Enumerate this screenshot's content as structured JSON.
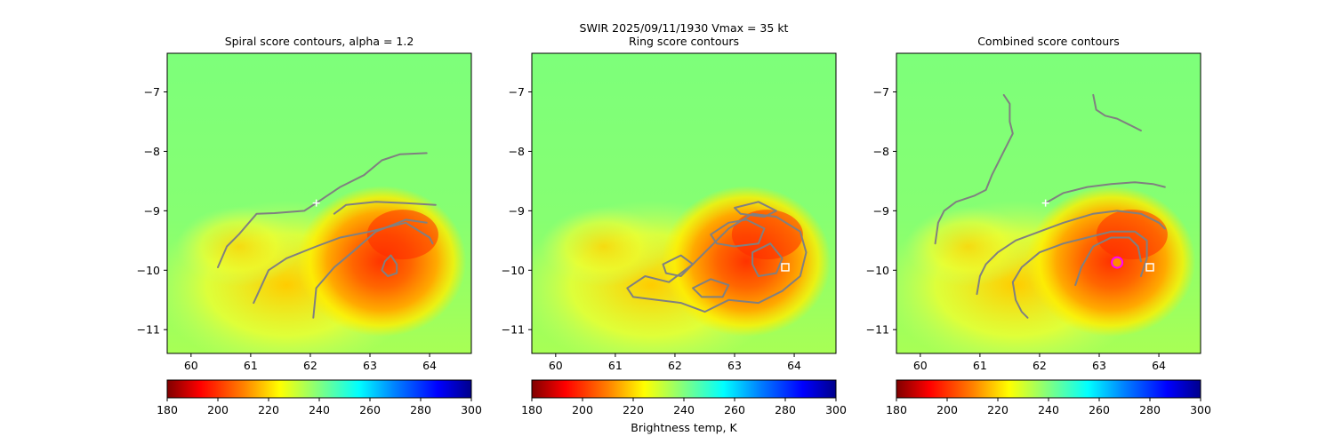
{
  "suptitle": {
    "line1": "SWIR  2025/09/11/1930    Vmax = 35 kt"
  },
  "colors": {
    "contour": "#808080",
    "marker_plus": "#ffffff",
    "marker_circle": "#ff00ff",
    "marker_fill": "#ff8c00",
    "colormap": [
      "#800000",
      "#ff0000",
      "#ff8000",
      "#ffff00",
      "#80ff80",
      "#00ffff",
      "#0080ff",
      "#0000ff",
      "#00008b"
    ]
  },
  "chart_data": [
    {
      "type": "heatmap",
      "title": "Spiral score contours, alpha =  1.2",
      "xlim": [
        59.6,
        64.7
      ],
      "ylim": [
        -11.4,
        -6.35
      ],
      "xticks": [
        "60",
        "61",
        "62",
        "63",
        "64"
      ],
      "yticks": [
        "−7",
        "−8",
        "−9",
        "−10",
        "−11"
      ],
      "colorbar": {
        "ticks": [
          "180",
          "200",
          "220",
          "240",
          "260",
          "280",
          "300"
        ],
        "range": [
          180,
          300
        ],
        "label": ""
      },
      "markers": [
        {
          "kind": "plus",
          "x": 62.1,
          "y": -8.87
        }
      ],
      "contours": [
        [
          [
            62.1,
            -8.87
          ],
          [
            62.5,
            -8.6
          ],
          [
            62.9,
            -8.4
          ],
          [
            63.2,
            -8.15
          ],
          [
            63.5,
            -8.05
          ],
          [
            63.95,
            -8.03
          ]
        ],
        [
          [
            60.45,
            -9.95
          ],
          [
            60.6,
            -9.6
          ],
          [
            60.8,
            -9.4
          ],
          [
            61.1,
            -9.05
          ],
          [
            61.4,
            -9.04
          ],
          [
            61.9,
            -9.0
          ],
          [
            62.1,
            -8.87
          ]
        ],
        [
          [
            61.05,
            -10.55
          ],
          [
            61.3,
            -10.0
          ],
          [
            61.6,
            -9.8
          ],
          [
            62.1,
            -9.6
          ],
          [
            62.5,
            -9.45
          ],
          [
            63.0,
            -9.35
          ],
          [
            63.6,
            -9.2
          ],
          [
            64.0,
            -9.45
          ],
          [
            64.05,
            -9.55
          ]
        ],
        [
          [
            62.05,
            -10.8
          ],
          [
            62.1,
            -10.3
          ],
          [
            62.4,
            -9.95
          ],
          [
            62.7,
            -9.7
          ],
          [
            63.1,
            -9.35
          ],
          [
            63.6,
            -9.15
          ],
          [
            63.95,
            -9.2
          ]
        ],
        [
          [
            62.4,
            -9.05
          ],
          [
            62.6,
            -8.9
          ],
          [
            63.1,
            -8.85
          ],
          [
            63.6,
            -8.87
          ],
          [
            64.1,
            -8.9
          ]
        ],
        [
          [
            63.25,
            -9.85
          ],
          [
            63.35,
            -9.75
          ],
          [
            63.45,
            -9.9
          ],
          [
            63.45,
            -10.05
          ],
          [
            63.3,
            -10.1
          ],
          [
            63.2,
            -10.0
          ],
          [
            63.25,
            -9.85
          ]
        ]
      ]
    },
    {
      "type": "heatmap",
      "title": "Ring score contours",
      "xlim": [
        59.6,
        64.7
      ],
      "ylim": [
        -11.4,
        -6.35
      ],
      "xticks": [
        "60",
        "61",
        "62",
        "63",
        "64"
      ],
      "yticks": [
        "−7",
        "−8",
        "−9",
        "−10",
        "−11"
      ],
      "colorbar": {
        "ticks": [
          "180",
          "200",
          "220",
          "240",
          "260",
          "280",
          "300"
        ],
        "range": [
          180,
          300
        ],
        "label": "Brightness temp, K"
      },
      "markers": [
        {
          "kind": "square",
          "x": 63.85,
          "y": -9.95
        }
      ],
      "contours": [
        [
          [
            61.2,
            -10.3
          ],
          [
            61.5,
            -10.1
          ],
          [
            61.9,
            -10.2
          ],
          [
            62.3,
            -9.9
          ],
          [
            62.6,
            -9.6
          ],
          [
            62.9,
            -9.3
          ],
          [
            63.3,
            -9.05
          ],
          [
            63.7,
            -9.1
          ],
          [
            64.1,
            -9.35
          ],
          [
            64.2,
            -9.7
          ],
          [
            64.1,
            -10.1
          ],
          [
            63.8,
            -10.35
          ],
          [
            63.4,
            -10.55
          ],
          [
            62.9,
            -10.5
          ],
          [
            62.5,
            -10.7
          ],
          [
            62.1,
            -10.55
          ],
          [
            61.7,
            -10.5
          ],
          [
            61.3,
            -10.45
          ],
          [
            61.2,
            -10.3
          ]
        ],
        [
          [
            62.6,
            -9.4
          ],
          [
            62.9,
            -9.2
          ],
          [
            63.2,
            -9.15
          ],
          [
            63.5,
            -9.3
          ],
          [
            63.4,
            -9.55
          ],
          [
            63.0,
            -9.6
          ],
          [
            62.7,
            -9.55
          ],
          [
            62.6,
            -9.4
          ]
        ],
        [
          [
            61.8,
            -9.9
          ],
          [
            62.1,
            -9.75
          ],
          [
            62.3,
            -9.9
          ],
          [
            62.1,
            -10.1
          ],
          [
            61.85,
            -10.05
          ],
          [
            61.8,
            -9.9
          ]
        ],
        [
          [
            63.3,
            -9.7
          ],
          [
            63.6,
            -9.55
          ],
          [
            63.8,
            -9.8
          ],
          [
            63.7,
            -10.05
          ],
          [
            63.4,
            -10.1
          ],
          [
            63.3,
            -9.9
          ],
          [
            63.3,
            -9.7
          ]
        ],
        [
          [
            62.3,
            -10.3
          ],
          [
            62.6,
            -10.15
          ],
          [
            62.9,
            -10.25
          ],
          [
            62.8,
            -10.45
          ],
          [
            62.45,
            -10.45
          ],
          [
            62.3,
            -10.3
          ]
        ],
        [
          [
            63.0,
            -8.95
          ],
          [
            63.4,
            -8.85
          ],
          [
            63.7,
            -9.0
          ],
          [
            63.5,
            -9.1
          ],
          [
            63.1,
            -9.05
          ],
          [
            63.0,
            -8.95
          ]
        ]
      ]
    },
    {
      "type": "heatmap",
      "title": "Combined score contours",
      "xlim": [
        59.6,
        64.7
      ],
      "ylim": [
        -11.4,
        -6.35
      ],
      "xticks": [
        "60",
        "61",
        "62",
        "63",
        "64"
      ],
      "yticks": [
        "−7",
        "−8",
        "−9",
        "−10",
        "−11"
      ],
      "colorbar": {
        "ticks": [
          "180",
          "200",
          "220",
          "240",
          "260",
          "280",
          "300"
        ],
        "range": [
          180,
          300
        ],
        "label": ""
      },
      "markers": [
        {
          "kind": "plus",
          "x": 62.1,
          "y": -8.87
        },
        {
          "kind": "circle",
          "x": 63.3,
          "y": -9.87
        },
        {
          "kind": "square",
          "x": 63.85,
          "y": -9.95
        }
      ],
      "contours": [
        [
          [
            61.4,
            -7.05
          ],
          [
            61.5,
            -7.2
          ],
          [
            61.5,
            -7.5
          ],
          [
            61.55,
            -7.7
          ],
          [
            61.4,
            -8.0
          ],
          [
            61.2,
            -8.4
          ],
          [
            61.1,
            -8.65
          ],
          [
            60.9,
            -8.75
          ],
          [
            60.6,
            -8.85
          ],
          [
            60.4,
            -9.0
          ],
          [
            60.3,
            -9.2
          ],
          [
            60.25,
            -9.55
          ]
        ],
        [
          [
            62.1,
            -8.87
          ],
          [
            62.4,
            -8.7
          ],
          [
            62.8,
            -8.6
          ],
          [
            63.2,
            -8.55
          ],
          [
            63.6,
            -8.52
          ],
          [
            63.9,
            -8.55
          ],
          [
            64.1,
            -8.6
          ]
        ],
        [
          [
            62.9,
            -7.05
          ],
          [
            62.95,
            -7.3
          ],
          [
            63.1,
            -7.4
          ],
          [
            63.3,
            -7.45
          ],
          [
            63.5,
            -7.55
          ],
          [
            63.7,
            -7.65
          ]
        ],
        [
          [
            60.95,
            -10.4
          ],
          [
            61.0,
            -10.1
          ],
          [
            61.1,
            -9.9
          ],
          [
            61.3,
            -9.7
          ],
          [
            61.6,
            -9.5
          ],
          [
            62.0,
            -9.35
          ],
          [
            62.4,
            -9.2
          ],
          [
            62.9,
            -9.05
          ],
          [
            63.3,
            -9.0
          ],
          [
            63.7,
            -9.05
          ],
          [
            64.0,
            -9.2
          ],
          [
            64.1,
            -9.3
          ]
        ],
        [
          [
            61.8,
            -10.8
          ],
          [
            61.7,
            -10.7
          ],
          [
            61.6,
            -10.5
          ],
          [
            61.55,
            -10.2
          ],
          [
            61.7,
            -9.95
          ],
          [
            62.0,
            -9.7
          ],
          [
            62.4,
            -9.55
          ],
          [
            62.8,
            -9.45
          ],
          [
            63.2,
            -9.35
          ],
          [
            63.6,
            -9.35
          ],
          [
            63.8,
            -9.5
          ],
          [
            63.8,
            -9.8
          ],
          [
            63.7,
            -10.1
          ]
        ],
        [
          [
            62.6,
            -10.25
          ],
          [
            62.7,
            -9.95
          ],
          [
            62.9,
            -9.6
          ],
          [
            63.2,
            -9.45
          ],
          [
            63.5,
            -9.45
          ],
          [
            63.65,
            -9.6
          ],
          [
            63.7,
            -9.85
          ]
        ]
      ]
    }
  ]
}
